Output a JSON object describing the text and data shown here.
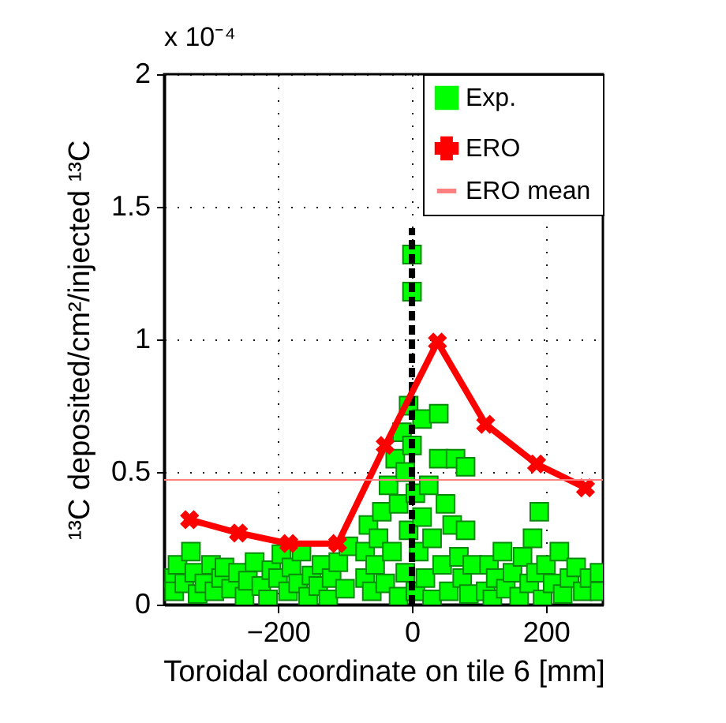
{
  "chart_data": {
    "type": "scatter",
    "xlabel": "Toroidal coordinate on tile 6 [mm]",
    "ylabel": "¹³C deposited/cm²/injected ¹³C",
    "annotations": [
      "x 10⁻⁴"
    ],
    "xlim": [
      -370,
      285
    ],
    "xticks": [
      -200,
      0,
      200
    ],
    "ylim": [
      0,
      2
    ],
    "yticks": [
      0,
      0.5,
      1,
      1.5,
      2
    ],
    "grid": true,
    "legend": "top right",
    "series": [
      {
        "name": "Exp.",
        "type": "scatter",
        "color": "#00ff00",
        "marker": "square",
        "x": [
          -355,
          -355,
          -350,
          -340,
          -330,
          -325,
          -320,
          -310,
          -300,
          -295,
          -285,
          -280,
          -270,
          -260,
          -250,
          -245,
          -235,
          -225,
          -215,
          -210,
          -200,
          -195,
          -185,
          -180,
          -170,
          -165,
          -155,
          -150,
          -140,
          -135,
          -125,
          -120,
          -110,
          -100,
          -95,
          -70,
          -70,
          -65,
          -60,
          -55,
          -50,
          -45,
          -40,
          -35,
          -30,
          -25,
          -20,
          -20,
          -15,
          -10,
          -10,
          -5,
          -5,
          0,
          0,
          0,
          5,
          5,
          10,
          15,
          15,
          20,
          25,
          30,
          30,
          40,
          40,
          45,
          50,
          55,
          60,
          65,
          70,
          75,
          80,
          80,
          85,
          90,
          110,
          115,
          120,
          125,
          135,
          140,
          150,
          160,
          165,
          175,
          180,
          185,
          190,
          195,
          200,
          210,
          220,
          225,
          235,
          245,
          255,
          265,
          280,
          280
        ],
        "values": [
          0.1,
          0.05,
          0.15,
          0.08,
          0.2,
          0.12,
          0.04,
          0.08,
          0.15,
          0.05,
          0.1,
          0.14,
          0.06,
          0.12,
          0.03,
          0.09,
          0.16,
          0.07,
          0.02,
          0.13,
          0.1,
          0.19,
          0.05,
          0.14,
          0.08,
          0.2,
          0.03,
          0.11,
          0.07,
          0.15,
          0.02,
          0.1,
          0.16,
          0.06,
          0.22,
          0.2,
          0.1,
          0.3,
          0.05,
          0.15,
          0.25,
          0.35,
          0.08,
          0.45,
          0.2,
          0.55,
          0.03,
          0.38,
          0.65,
          0.12,
          0.5,
          0.75,
          0.28,
          1.32,
          1.18,
          0.6,
          0.42,
          0.05,
          0.2,
          0.7,
          0.33,
          0.1,
          0.45,
          0.02,
          0.25,
          0.72,
          0.55,
          0.15,
          0.38,
          0.05,
          0.3,
          0.55,
          0.18,
          0.1,
          0.52,
          0.28,
          0.04,
          0.15,
          0.05,
          0.15,
          0.02,
          0.1,
          0.2,
          0.06,
          0.12,
          0.03,
          0.18,
          0.08,
          0.25,
          0.12,
          0.35,
          0.02,
          0.15,
          0.08,
          0.2,
          0.04,
          0.1,
          0.14,
          0.05,
          0.1,
          0.12,
          0.05
        ]
      },
      {
        "type": "line",
        "color": "#000000",
        "line_style": "dashed",
        "marker": "none",
        "x": [
          0,
          0
        ],
        "values": [
          0,
          1.42
        ]
      },
      {
        "name": "ERO",
        "type": "line",
        "color": "#ff0000",
        "marker": "cross",
        "line_style": "solid",
        "x": [
          -332,
          -259,
          -184,
          -111,
          -40,
          38,
          110,
          186,
          259
        ],
        "values": [
          0.32,
          0.27,
          0.23,
          0.23,
          0.6,
          0.99,
          0.68,
          0.53,
          0.44
        ]
      },
      {
        "name": "ERO mean",
        "type": "line",
        "color": "#ff8080",
        "marker": "none",
        "line_style": "solid",
        "x": [
          -370,
          285
        ],
        "values": [
          0.47,
          0.47
        ]
      }
    ]
  }
}
